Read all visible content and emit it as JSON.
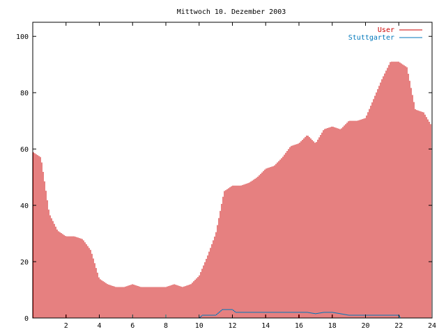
{
  "chart_data": {
    "type": "bar",
    "title": "Mittwoch 10. Dezember 2003",
    "xlabel": "",
    "ylabel": "",
    "xlim": [
      0,
      24
    ],
    "ylim": [
      0,
      105
    ],
    "x_ticks": [
      "2",
      "4",
      "6",
      "8",
      "10",
      "12",
      "14",
      "16",
      "18",
      "20",
      "22",
      "24"
    ],
    "y_ticks": [
      "0",
      "20",
      "40",
      "60",
      "80",
      "100"
    ],
    "legend_position": "top-right",
    "colors": {
      "user": "#cc0000",
      "stuttgarter": "#0077bb"
    },
    "series": [
      {
        "name": "User",
        "x_hours": [
          0.0,
          0.5,
          1.0,
          1.5,
          2.0,
          2.5,
          3.0,
          3.5,
          3.85,
          4.0,
          4.5,
          5.0,
          5.5,
          6.0,
          6.5,
          7.0,
          7.5,
          8.0,
          8.5,
          9.0,
          9.5,
          10.0,
          10.5,
          11.0,
          11.5,
          12.0,
          12.5,
          13.0,
          13.5,
          14.0,
          14.5,
          15.0,
          15.5,
          16.0,
          16.5,
          17.0,
          17.5,
          18.0,
          18.5,
          19.0,
          19.5,
          20.0,
          20.5,
          21.0,
          21.5,
          22.0,
          22.5,
          23.0,
          23.5,
          24.0
        ],
        "values": [
          59,
          57,
          37,
          31,
          29,
          29,
          28,
          24,
          17,
          14,
          12,
          11,
          11,
          12,
          11,
          11,
          11,
          11,
          12,
          11,
          12,
          15,
          22,
          30,
          45,
          47,
          47,
          48,
          50,
          53,
          54,
          57,
          61,
          62,
          65,
          62,
          67,
          68,
          67,
          70,
          70,
          71,
          78,
          85,
          91,
          91,
          89,
          74,
          73,
          68
        ]
      },
      {
        "name": "Stuttgarter",
        "x_hours": [
          0.0,
          10.0,
          10.2,
          11.0,
          11.4,
          12.0,
          12.2,
          16.5,
          17.0,
          17.5,
          18.0,
          18.5,
          19.0,
          21.0,
          22.0,
          22.1,
          24.0
        ],
        "values": [
          0,
          0,
          1,
          1,
          3,
          3,
          2,
          2,
          1.5,
          2,
          2,
          1.5,
          1,
          1,
          1,
          0,
          0
        ]
      }
    ]
  }
}
